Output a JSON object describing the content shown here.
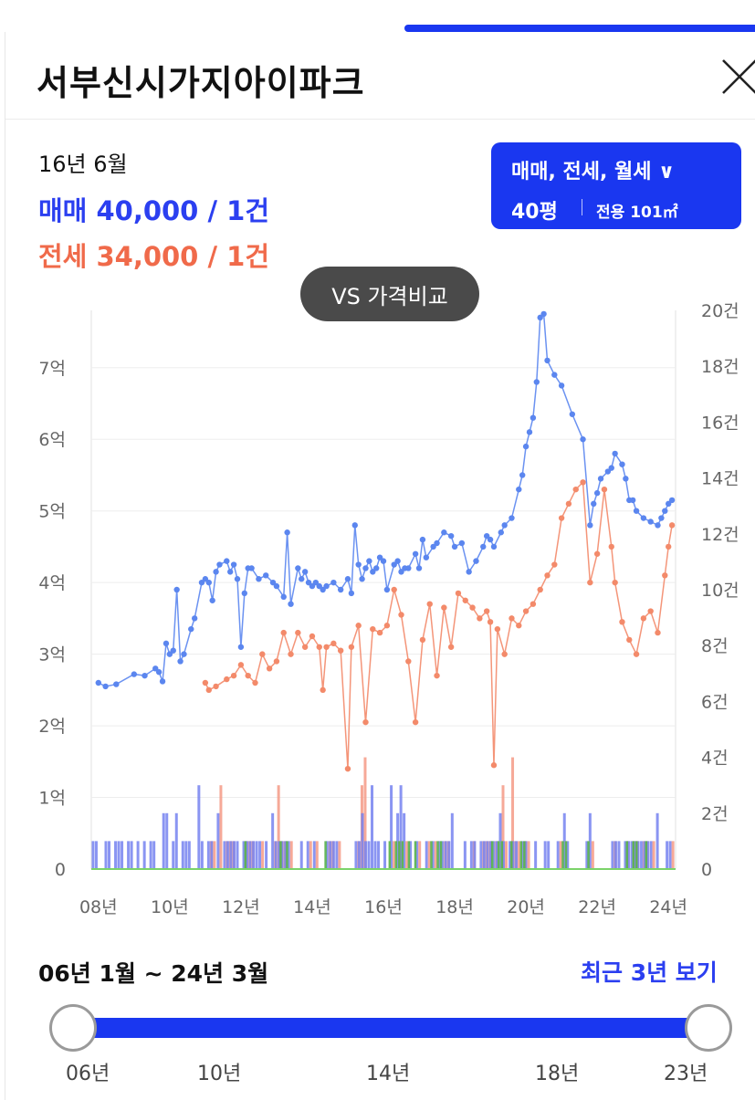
{
  "header": {
    "title": "서부신시가지아이파크"
  },
  "summary": {
    "date": "16년 6월",
    "sale": "매매 40,000 / 1건",
    "jeonse": "전세 34,000 / 1건"
  },
  "filter": {
    "types": "매매, 전세, 월세 ∨",
    "size": "40평",
    "area": "전용 101㎡"
  },
  "vs_button": "VS 가격비교",
  "chart_data": {
    "type": "line",
    "x_range": [
      2007.8,
      2024.2
    ],
    "x_tick_labels": [
      "08년",
      "10년",
      "12년",
      "14년",
      "16년",
      "18년",
      "20년",
      "22년",
      "24년"
    ],
    "x_ticks": [
      2008,
      2010,
      2012,
      2014,
      2016,
      2018,
      2020,
      2022,
      2024
    ],
    "y_left": {
      "range": [
        0,
        7.8
      ],
      "tick_labels": [
        "0",
        "1억",
        "2억",
        "3억",
        "4억",
        "5억",
        "6억",
        "7억"
      ],
      "ticks": [
        0,
        1,
        2,
        3,
        4,
        5,
        6,
        7
      ]
    },
    "y_right": {
      "range": [
        0,
        20
      ],
      "tick_labels": [
        "0",
        "2건",
        "4건",
        "6건",
        "8건",
        "10건",
        "12건",
        "14건",
        "16건",
        "18건",
        "20건"
      ],
      "ticks": [
        0,
        2,
        4,
        6,
        8,
        10,
        12,
        14,
        16,
        18,
        20
      ]
    },
    "colors": {
      "sale": "#5b86ef",
      "jeonse": "#f38a6a",
      "sale_bar": "#7583f0",
      "jeonse_bar": "#f49a86",
      "monthly_bar": "#58b24a"
    },
    "series": [
      {
        "key": "sale",
        "x": [
          2008.0,
          2008.2,
          2008.5,
          2009.0,
          2009.3,
          2009.6,
          2009.7,
          2009.8,
          2009.9,
          2010.0,
          2010.1,
          2010.2,
          2010.3,
          2010.4,
          2010.6,
          2010.7,
          2010.9,
          2011.0,
          2011.1,
          2011.2,
          2011.3,
          2011.4,
          2011.6,
          2011.7,
          2011.8,
          2011.9,
          2012.0,
          2012.1,
          2012.2,
          2012.3,
          2012.5,
          2012.7,
          2012.9,
          2013.0,
          2013.2,
          2013.3,
          2013.4,
          2013.6,
          2013.7,
          2013.8,
          2013.9,
          2014.0,
          2014.1,
          2014.2,
          2014.3,
          2014.4,
          2014.6,
          2014.8,
          2015.0,
          2015.1,
          2015.2,
          2015.3,
          2015.4,
          2015.5,
          2015.6,
          2015.7,
          2015.8,
          2015.9,
          2016.0,
          2016.1,
          2016.3,
          2016.4,
          2016.5,
          2016.6,
          2016.7,
          2016.9,
          2017.0,
          2017.1,
          2017.2,
          2017.4,
          2017.5,
          2017.7,
          2017.9,
          2018.0,
          2018.2,
          2018.4,
          2018.6,
          2018.8,
          2018.9,
          2019.0,
          2019.1,
          2019.3,
          2019.4,
          2019.6,
          2019.8,
          2019.9,
          2020.0,
          2020.1,
          2020.2,
          2020.3,
          2020.4,
          2020.5,
          2020.6,
          2020.8,
          2021.0,
          2021.3,
          2021.6,
          2021.8,
          2021.9,
          2022.0,
          2022.1,
          2022.3,
          2022.4,
          2022.5,
          2022.7,
          2022.8,
          2022.9,
          2023.0,
          2023.1,
          2023.3,
          2023.5,
          2023.7,
          2023.8,
          2023.9,
          2024.0,
          2024.1
        ],
        "y": [
          2.6,
          2.55,
          2.58,
          2.72,
          2.7,
          2.8,
          2.75,
          2.62,
          3.15,
          3.0,
          3.05,
          3.9,
          2.9,
          3.0,
          3.35,
          3.5,
          4.0,
          4.05,
          4.0,
          3.75,
          4.15,
          4.25,
          4.3,
          4.15,
          4.25,
          4.05,
          3.1,
          3.85,
          4.2,
          4.2,
          4.05,
          4.1,
          4.0,
          3.95,
          3.8,
          4.7,
          3.7,
          4.2,
          4.05,
          4.15,
          4.0,
          3.95,
          4.0,
          3.95,
          3.9,
          3.95,
          4.0,
          3.9,
          4.05,
          3.85,
          4.8,
          4.25,
          4.05,
          4.2,
          4.3,
          4.15,
          4.2,
          4.35,
          4.3,
          3.9,
          4.25,
          4.3,
          4.15,
          4.2,
          4.2,
          4.4,
          4.2,
          4.6,
          4.35,
          4.5,
          4.55,
          4.7,
          4.65,
          4.5,
          4.55,
          4.15,
          4.3,
          4.5,
          4.65,
          4.6,
          4.5,
          4.7,
          4.8,
          4.9,
          5.3,
          5.5,
          5.9,
          6.1,
          6.3,
          6.8,
          7.7,
          7.75,
          7.1,
          6.9,
          6.75,
          6.35,
          6.0,
          4.8,
          5.1,
          5.25,
          5.45,
          5.55,
          5.6,
          5.8,
          5.65,
          5.45,
          5.15,
          5.15,
          5.0,
          4.9,
          4.85,
          4.8,
          4.9,
          5.0,
          5.1,
          5.15
        ]
      },
      {
        "key": "jeonse",
        "x": [
          2011.0,
          2011.1,
          2011.3,
          2011.6,
          2011.8,
          2012.0,
          2012.2,
          2012.4,
          2012.6,
          2012.8,
          2013.0,
          2013.2,
          2013.4,
          2013.6,
          2013.8,
          2014.0,
          2014.2,
          2014.3,
          2014.4,
          2014.6,
          2014.8,
          2015.0,
          2015.1,
          2015.3,
          2015.5,
          2015.7,
          2015.9,
          2016.1,
          2016.3,
          2016.5,
          2016.7,
          2016.9,
          2017.1,
          2017.3,
          2017.5,
          2017.7,
          2017.9,
          2018.1,
          2018.3,
          2018.5,
          2018.7,
          2018.9,
          2019.0,
          2019.1,
          2019.2,
          2019.4,
          2019.6,
          2019.8,
          2020.0,
          2020.2,
          2020.4,
          2020.6,
          2020.8,
          2021.0,
          2021.2,
          2021.4,
          2021.6,
          2021.8,
          2022.0,
          2022.2,
          2022.4,
          2022.5,
          2022.7,
          2022.9,
          2023.1,
          2023.3,
          2023.5,
          2023.7,
          2023.9,
          2024.0,
          2024.1
        ],
        "y": [
          2.6,
          2.5,
          2.55,
          2.65,
          2.7,
          2.85,
          2.7,
          2.6,
          3.0,
          2.8,
          2.9,
          3.3,
          3.0,
          3.3,
          3.1,
          3.25,
          3.1,
          2.5,
          3.1,
          3.15,
          3.05,
          1.4,
          3.1,
          3.4,
          2.05,
          3.35,
          3.3,
          3.4,
          3.9,
          3.55,
          2.9,
          2.05,
          3.2,
          3.7,
          2.7,
          3.65,
          3.1,
          3.85,
          3.75,
          3.65,
          3.5,
          3.6,
          3.45,
          1.45,
          3.35,
          3.0,
          3.5,
          3.4,
          3.6,
          3.7,
          3.9,
          4.1,
          4.25,
          4.9,
          5.1,
          5.3,
          5.4,
          4.0,
          4.4,
          5.3,
          4.5,
          4.0,
          3.45,
          3.2,
          3.0,
          3.5,
          3.6,
          3.3,
          4.1,
          4.5,
          4.8
        ]
      }
    ]
  },
  "range": {
    "label": "06년 1월 ~ 24년 3월",
    "recent_link": "최근 3년 보기"
  },
  "slider": {
    "ticks": [
      "06년",
      "10년",
      "14년",
      "18년",
      "23년"
    ]
  }
}
